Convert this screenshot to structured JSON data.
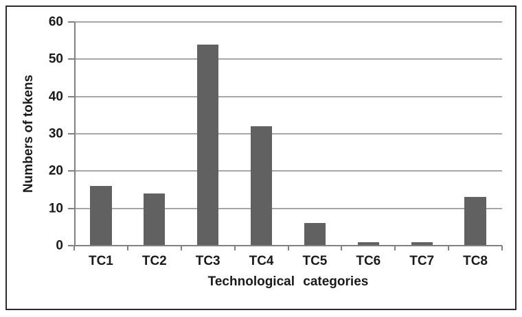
{
  "chart_data": {
    "type": "bar",
    "categories": [
      "TC1",
      "TC2",
      "TC3",
      "TC4",
      "TC5",
      "TC6",
      "TC7",
      "TC8"
    ],
    "values": [
      16,
      14,
      54,
      32,
      6,
      1,
      1,
      13
    ],
    "title": "",
    "xlabel": "Technological categories",
    "ylabel": "Numbers of tokens",
    "ylim": [
      0,
      60
    ],
    "ytick_step": 10,
    "yticks": [
      0,
      10,
      20,
      30,
      40,
      50,
      60
    ],
    "grid": "horizontal-only",
    "legend": "none",
    "bar_width_fraction": 0.4,
    "colors": {
      "bar": "#616161",
      "gridline": "#a6a6a6",
      "axis": "#808080",
      "figure_border": "#2b2b2b",
      "text": "#1a1a1a",
      "background": "#ffffff"
    }
  }
}
